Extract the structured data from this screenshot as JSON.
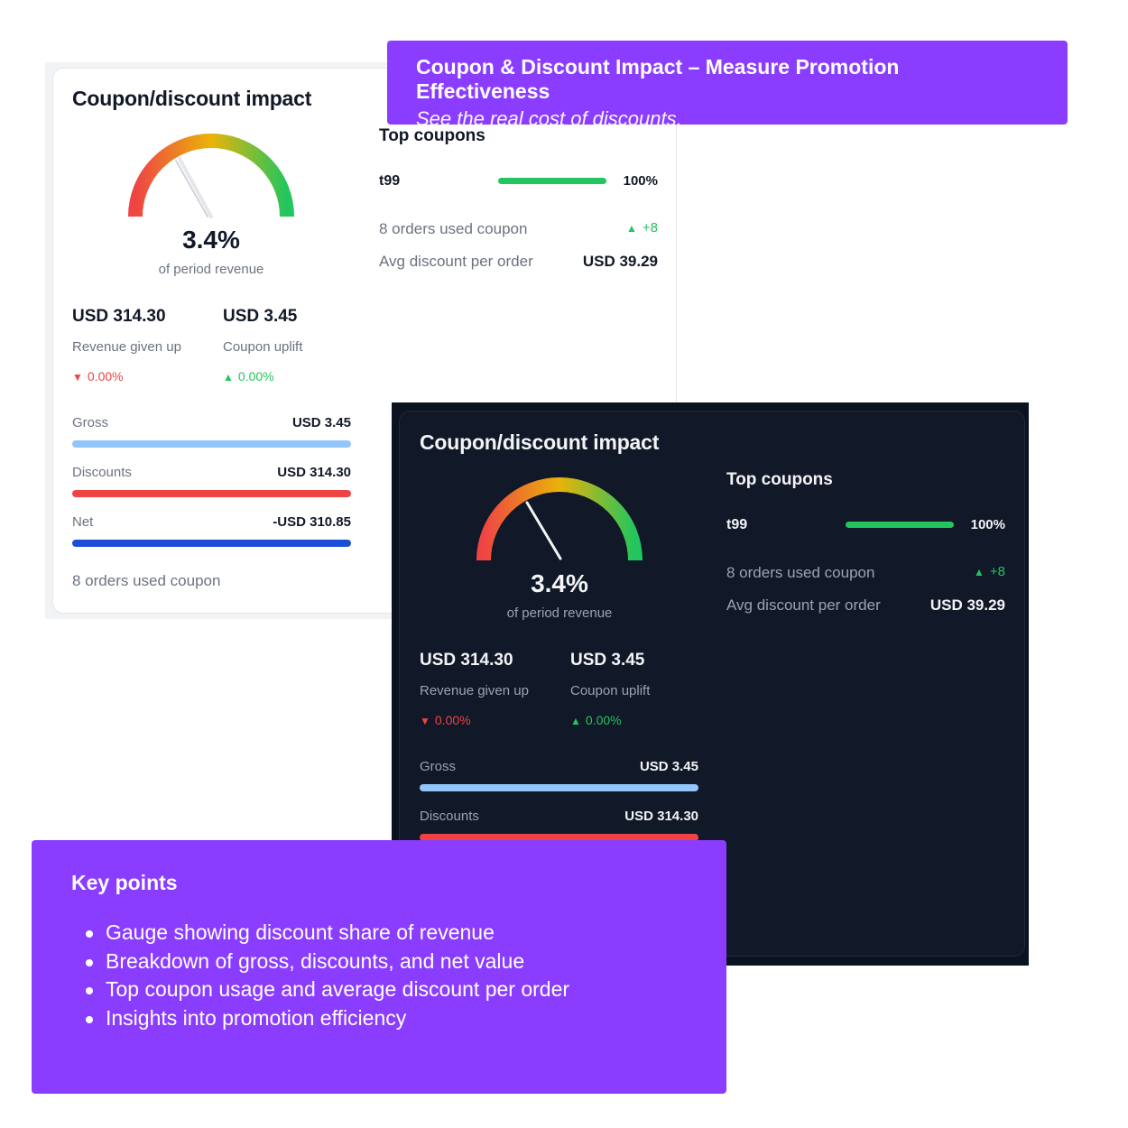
{
  "banner": {
    "title": "Coupon & Discount Impact – Measure Promotion Effectiveness",
    "subtitle": "See the real cost of discounts."
  },
  "widget": {
    "title": "Coupon/discount impact",
    "gauge": {
      "value_label": "3.4%",
      "value": 0.034,
      "sub_label": "of period revenue"
    },
    "kpis": [
      {
        "amount": "USD 314.30",
        "label": "Revenue given up",
        "change": "0.00%",
        "direction": "down"
      },
      {
        "amount": "USD 3.45",
        "label": "Coupon uplift",
        "change": "0.00%",
        "direction": "up"
      }
    ],
    "breakdown": [
      {
        "label": "Gross",
        "value": "USD 3.45",
        "color": "#93c5fd"
      },
      {
        "label": "Discounts",
        "value": "USD 314.30",
        "color": "#ef4444"
      },
      {
        "label": "Net",
        "value": "-USD 310.85",
        "color": "#1d4ed8"
      }
    ],
    "footer": "8 orders used coupon",
    "top_coupons": {
      "title": "Top coupons",
      "items": [
        {
          "code": "t99",
          "share_label": "100%",
          "share": 1.0
        }
      ],
      "orders_used_label": "8 orders used coupon",
      "orders_used_delta": "+8",
      "avg_discount_label": "Avg discount per order",
      "avg_discount_value": "USD 39.29"
    }
  },
  "key_points": {
    "title": "Key points",
    "items": [
      "Gauge showing discount share of revenue",
      "Breakdown of gross, discounts, and net value",
      "Top coupon usage and average discount per order",
      "Insights into promotion efficiency"
    ]
  },
  "colors": {
    "accent_purple": "#8b3dff",
    "up": "#22c55e",
    "down": "#ef4444",
    "dark_background": "#111827"
  }
}
